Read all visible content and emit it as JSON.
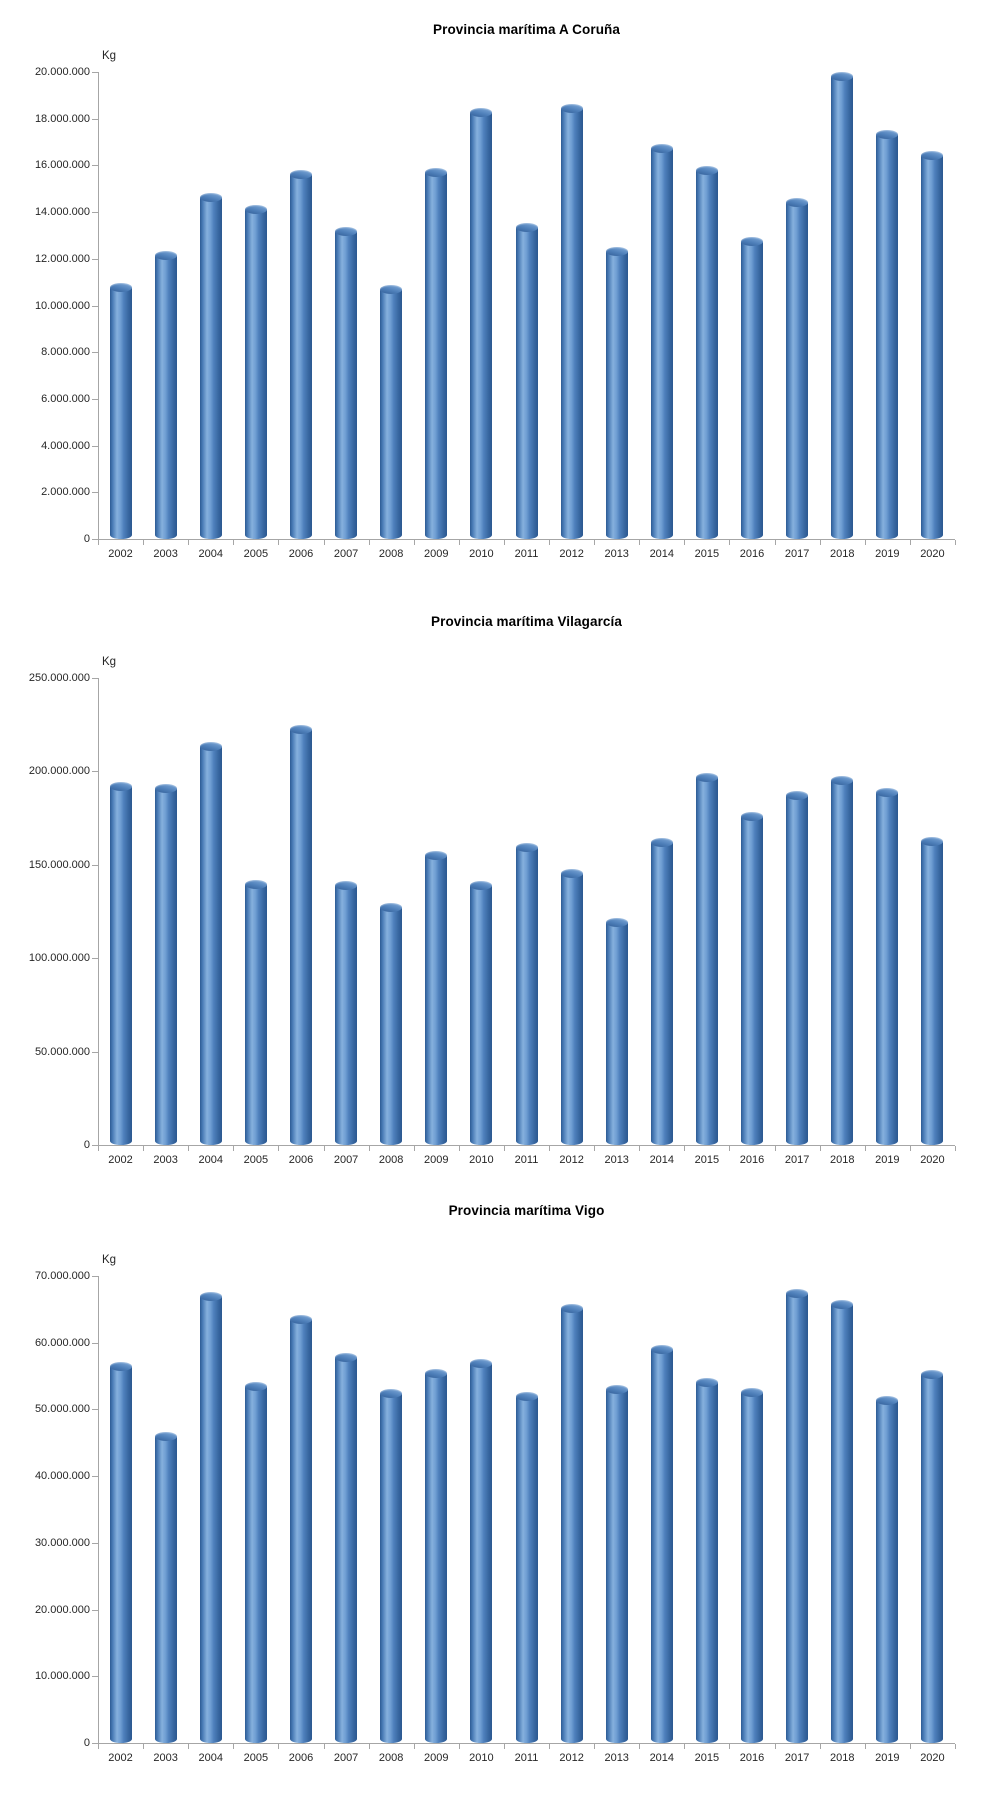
{
  "colors": {
    "background": "#ffffff",
    "title_text": "#000000",
    "axis_line": "#a6a6a6",
    "label_text": "#262626",
    "bar_main": "#4f81bd",
    "bar_highlight": "#86b0dd",
    "bar_dark": "#2d5b94"
  },
  "chart_data": [
    {
      "type": "bar",
      "title": "Provincia marítima A Coruña",
      "ylabel": "Kg",
      "xlabel": "",
      "ylim": [
        0,
        20000000
      ],
      "y_step": 2000000,
      "grid": false,
      "legend": false,
      "categories": [
        "2002",
        "2003",
        "2004",
        "2005",
        "2006",
        "2007",
        "2008",
        "2009",
        "2010",
        "2011",
        "2012",
        "2013",
        "2014",
        "2015",
        "2016",
        "2017",
        "2018",
        "2019",
        "2020"
      ],
      "values": [
        10800000,
        12150000,
        14650000,
        14150000,
        15650000,
        13200000,
        10700000,
        15700000,
        18300000,
        13350000,
        18450000,
        12350000,
        16750000,
        15800000,
        12750000,
        14450000,
        19850000,
        17350000,
        16450000
      ]
    },
    {
      "type": "bar",
      "title": "Provincia marítima Vilagarcía",
      "ylabel": "Kg",
      "xlabel": "",
      "ylim": [
        0,
        250000000
      ],
      "y_step": 50000000,
      "grid": false,
      "legend": false,
      "categories": [
        "2002",
        "2003",
        "2004",
        "2005",
        "2006",
        "2007",
        "2008",
        "2009",
        "2010",
        "2011",
        "2012",
        "2013",
        "2014",
        "2015",
        "2016",
        "2017",
        "2018",
        "2019",
        "2020"
      ],
      "values": [
        192000000,
        191000000,
        213500000,
        139500000,
        222500000,
        139000000,
        127500000,
        155500000,
        139000000,
        159500000,
        145500000,
        119500000,
        162000000,
        197000000,
        176000000,
        187500000,
        195500000,
        189000000,
        163000000
      ]
    },
    {
      "type": "bar",
      "title": "Provincia marítima Vigo",
      "ylabel": "Kg",
      "xlabel": "",
      "ylim": [
        0,
        70000000
      ],
      "y_step": 10000000,
      "grid": false,
      "legend": false,
      "categories": [
        "2002",
        "2003",
        "2004",
        "2005",
        "2006",
        "2007",
        "2008",
        "2009",
        "2010",
        "2011",
        "2012",
        "2013",
        "2014",
        "2015",
        "2016",
        "2017",
        "2018",
        "2019",
        "2020"
      ],
      "values": [
        56500000,
        46000000,
        67000000,
        53500000,
        63500000,
        57800000,
        52500000,
        55400000,
        57000000,
        52000000,
        65200000,
        53100000,
        59100000,
        54100000,
        52600000,
        67400000,
        65800000,
        51400000,
        55300000
      ]
    }
  ]
}
